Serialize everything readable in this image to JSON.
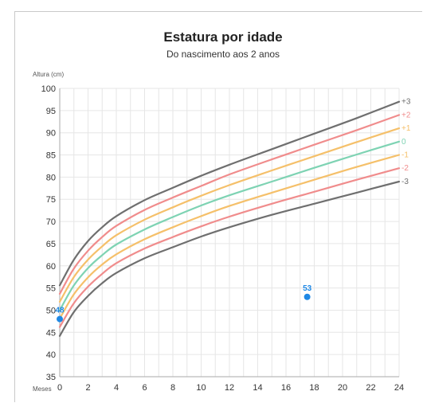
{
  "chart_data": {
    "type": "line",
    "title": "Estatura por idade",
    "subtitle": "Do nascimento aos 2 anos",
    "ylabel": "Altura (cm)",
    "xlabel": "Meses",
    "xlim": [
      0,
      24
    ],
    "ylim": [
      35,
      100
    ],
    "x_ticks": [
      0,
      2,
      4,
      6,
      8,
      10,
      12,
      14,
      16,
      18,
      20,
      22,
      24
    ],
    "y_ticks": [
      35,
      40,
      45,
      50,
      55,
      60,
      65,
      70,
      75,
      80,
      85,
      90,
      95,
      100
    ],
    "grid": true,
    "x": [
      0,
      1,
      2,
      3,
      4,
      6,
      8,
      10,
      12,
      15,
      18,
      21,
      24
    ],
    "series": [
      {
        "name": "+3",
        "color": "#6f6f6f",
        "values": [
          55.6,
          61.4,
          65.6,
          68.7,
          71.2,
          74.8,
          77.6,
          80.3,
          82.8,
          86.3,
          89.8,
          93.3,
          97.0
        ]
      },
      {
        "name": "+2",
        "color": "#f08c8c",
        "values": [
          53.7,
          59.4,
          63.4,
          66.5,
          69.0,
          72.6,
          75.4,
          78.0,
          80.6,
          84.0,
          87.3,
          90.6,
          94.0
        ]
      },
      {
        "name": "+1",
        "color": "#f5c06a",
        "values": [
          51.9,
          57.5,
          61.4,
          64.4,
          66.9,
          70.4,
          73.2,
          75.8,
          78.2,
          81.5,
          84.7,
          87.9,
          91.0
        ]
      },
      {
        "name": "0",
        "color": "#7ed3b3",
        "values": [
          50.0,
          55.6,
          59.5,
          62.4,
          64.8,
          68.2,
          71.0,
          73.6,
          75.9,
          79.0,
          82.1,
          85.1,
          88.0
        ]
      },
      {
        "name": "-1",
        "color": "#f5c06a",
        "values": [
          48.1,
          53.6,
          57.4,
          60.3,
          62.6,
          66.0,
          68.7,
          71.2,
          73.5,
          76.5,
          79.4,
          82.3,
          85.0
        ]
      },
      {
        "name": "-2",
        "color": "#f08c8c",
        "values": [
          46.2,
          51.6,
          55.3,
          58.2,
          60.6,
          63.9,
          66.5,
          68.9,
          71.1,
          74.0,
          76.7,
          79.4,
          82.0
        ]
      },
      {
        "name": "-3",
        "color": "#6f6f6f",
        "values": [
          44.2,
          49.6,
          53.2,
          56.1,
          58.4,
          61.7,
          64.2,
          66.6,
          68.7,
          71.5,
          74.0,
          76.5,
          79.0
        ]
      }
    ],
    "points": [
      {
        "x": 0,
        "y": 48,
        "label": "48"
      },
      {
        "x": 17.5,
        "y": 53,
        "label": "53"
      }
    ],
    "point_color": "#1e88e5"
  }
}
